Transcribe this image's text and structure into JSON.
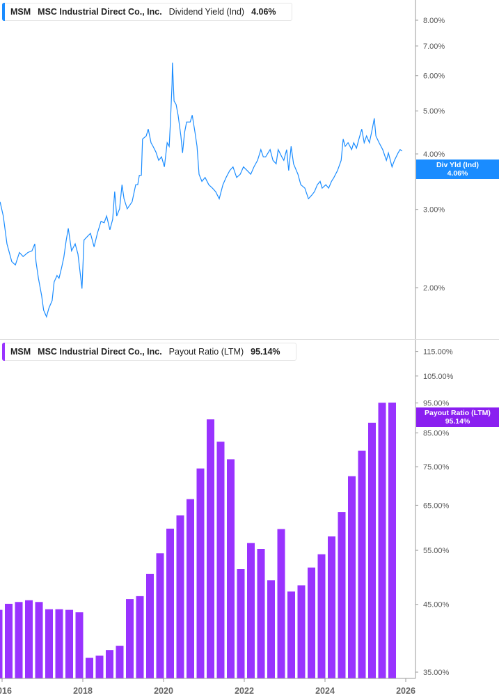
{
  "panels": {
    "top": {
      "ticker": "MSM",
      "company": "MSC Industrial Direct Co., Inc.",
      "metric": "Dividend Yield (Ind)",
      "value": "4.06%",
      "tag_label": "Div Yld (Ind)",
      "tag_value": "4.06%"
    },
    "bottom": {
      "ticker": "MSM",
      "company": "MSC Industrial Direct Co., Inc.",
      "metric": "Payout Ratio (LTM)",
      "value": "95.14%",
      "tag_label": "Payout Ratio (LTM)",
      "tag_value": "95.14%"
    }
  },
  "colors": {
    "line": "#1a8cff",
    "bar": "#9933ff",
    "tag_bar": "#8a1ff0"
  },
  "chart_data": [
    {
      "type": "line",
      "series_name": "Dividend Yield (Ind)",
      "y_scale": "log",
      "ylim": [
        1.6,
        9
      ],
      "y_ticks": [
        "8.00%",
        "7.00%",
        "6.00%",
        "5.00%",
        "4.00%",
        "3.00%",
        "2.00%"
      ],
      "y_tick_values": [
        8,
        7,
        6,
        5,
        4,
        3,
        2
      ],
      "grid": false,
      "x_year": [
        2015.95,
        2016.03,
        2016.12,
        2016.24,
        2016.33,
        2016.43,
        2016.52,
        2016.64,
        2016.74,
        2016.81,
        2016.84,
        2016.9,
        2016.98,
        2017.03,
        2017.1,
        2017.16,
        2017.24,
        2017.29,
        2017.36,
        2017.41,
        2017.47,
        2017.53,
        2017.59,
        2017.64,
        2017.72,
        2017.81,
        2017.88,
        2017.95,
        2017.98,
        2018.03,
        2018.1,
        2018.19,
        2018.28,
        2018.36,
        2018.45,
        2018.53,
        2018.59,
        2018.67,
        2018.74,
        2018.79,
        2018.84,
        2018.91,
        2018.97,
        2019.02,
        2019.1,
        2019.22,
        2019.31,
        2019.36,
        2019.4,
        2019.45,
        2019.48,
        2019.57,
        2019.62,
        2019.69,
        2019.74,
        2019.81,
        2019.88,
        2019.95,
        2020.02,
        2020.09,
        2020.14,
        2020.17,
        2020.21,
        2020.22,
        2020.26,
        2020.31,
        2020.36,
        2020.43,
        2020.47,
        2020.52,
        2020.57,
        2020.66,
        2020.71,
        2020.78,
        2020.83,
        2020.88,
        2020.95,
        2021.03,
        2021.12,
        2021.21,
        2021.29,
        2021.38,
        2021.47,
        2021.55,
        2021.64,
        2021.72,
        2021.81,
        2021.9,
        2021.98,
        2022.07,
        2022.16,
        2022.24,
        2022.33,
        2022.41,
        2022.47,
        2022.53,
        2022.64,
        2022.71,
        2022.79,
        2022.84,
        2022.93,
        2022.98,
        2023.05,
        2023.1,
        2023.16,
        2023.22,
        2023.33,
        2023.4,
        2023.5,
        2023.59,
        2023.67,
        2023.74,
        2023.81,
        2023.88,
        2023.93,
        2024.02,
        2024.09,
        2024.16,
        2024.22,
        2024.31,
        2024.4,
        2024.45,
        2024.5,
        2024.57,
        2024.66,
        2024.71,
        2024.78,
        2024.84,
        2024.91,
        2024.97,
        2025.03,
        2025.1,
        2025.17,
        2025.22,
        2025.26,
        2025.34,
        2025.43,
        2025.52,
        2025.57,
        2025.66,
        2025.72,
        2025.81,
        2025.86,
        2025.91
      ],
      "y": [
        3.12,
        2.9,
        2.51,
        2.29,
        2.25,
        2.4,
        2.35,
        2.4,
        2.42,
        2.51,
        2.29,
        2.1,
        1.92,
        1.78,
        1.72,
        1.8,
        1.87,
        2.06,
        2.13,
        2.1,
        2.21,
        2.34,
        2.56,
        2.72,
        2.42,
        2.51,
        2.38,
        2.1,
        1.99,
        2.56,
        2.6,
        2.65,
        2.47,
        2.65,
        2.82,
        2.8,
        2.9,
        2.7,
        2.85,
        3.29,
        2.9,
        3.01,
        3.41,
        3.17,
        3.01,
        3.12,
        3.41,
        3.41,
        3.58,
        3.58,
        4.32,
        4.39,
        4.55,
        4.24,
        4.16,
        4.04,
        3.87,
        3.94,
        3.74,
        4.24,
        4.16,
        4.72,
        5.76,
        6.42,
        5.26,
        5.17,
        4.89,
        4.39,
        4.02,
        4.47,
        4.72,
        4.72,
        4.89,
        4.47,
        4.16,
        3.6,
        3.47,
        3.54,
        3.41,
        3.35,
        3.29,
        3.17,
        3.41,
        3.54,
        3.67,
        3.74,
        3.54,
        3.6,
        3.74,
        3.67,
        3.6,
        3.74,
        3.87,
        4.09,
        3.94,
        3.94,
        4.09,
        3.87,
        3.8,
        4.09,
        3.94,
        3.87,
        4.09,
        3.67,
        4.16,
        3.8,
        3.6,
        3.41,
        3.35,
        3.17,
        3.23,
        3.29,
        3.41,
        3.47,
        3.35,
        3.41,
        3.35,
        3.47,
        3.54,
        3.67,
        3.87,
        4.32,
        4.16,
        4.24,
        4.09,
        4.24,
        4.12,
        4.32,
        4.55,
        4.24,
        4.39,
        4.24,
        4.55,
        4.81,
        4.39,
        4.24,
        4.09,
        3.87,
        4.02,
        3.74,
        3.87,
        4.02,
        4.09,
        4.06
      ]
    },
    {
      "type": "bar",
      "series_name": "Payout Ratio (LTM)",
      "y_scale": "log",
      "ylim": [
        34,
        120
      ],
      "y_ticks": [
        "115.00%",
        "105.00%",
        "95.00%",
        "85.00%",
        "75.00%",
        "65.00%",
        "55.00%",
        "45.00%",
        "35.00%"
      ],
      "y_tick_values": [
        115,
        105,
        95,
        85,
        75,
        65,
        55,
        45,
        35
      ],
      "x_ticks": [
        "2016",
        "2018",
        "2020",
        "2022",
        "2024",
        "2026"
      ],
      "x_tick_values": [
        2016,
        2018,
        2020,
        2022,
        2024,
        2026
      ],
      "grid": false,
      "categories": [
        "2015-Q4",
        "2016-Q1",
        "2016-Q2",
        "2016-Q3",
        "2016-Q4",
        "2017-Q1",
        "2017-Q2",
        "2017-Q3",
        "2017-Q4",
        "2018-Q1",
        "2018-Q2",
        "2018-Q3",
        "2018-Q4",
        "2019-Q1",
        "2019-Q2",
        "2019-Q3",
        "2019-Q4",
        "2020-Q1",
        "2020-Q2",
        "2020-Q3",
        "2020-Q4",
        "2021-Q1",
        "2021-Q2",
        "2021-Q3",
        "2021-Q4",
        "2022-Q1",
        "2022-Q2",
        "2022-Q3",
        "2022-Q4",
        "2023-Q1",
        "2023-Q2",
        "2023-Q3",
        "2023-Q4",
        "2024-Q1",
        "2024-Q2",
        "2024-Q3",
        "2024-Q4",
        "2025-Q1",
        "2025-Q2",
        "2025-Q3"
      ],
      "values": [
        44.1,
        45.1,
        45.4,
        45.7,
        45.4,
        44.2,
        44.2,
        44.1,
        43.7,
        36.9,
        37.2,
        38.0,
        38.6,
        45.9,
        46.4,
        50.4,
        54.4,
        59.6,
        62.6,
        66.5,
        74.5,
        89.4,
        82.3,
        77.1,
        51.3,
        56.5,
        55.3,
        49.2,
        59.5,
        47.2,
        48.3,
        51.6,
        54.2,
        57.9,
        63.4,
        72.4,
        79.6,
        88.3,
        95.1,
        95.14
      ]
    }
  ]
}
